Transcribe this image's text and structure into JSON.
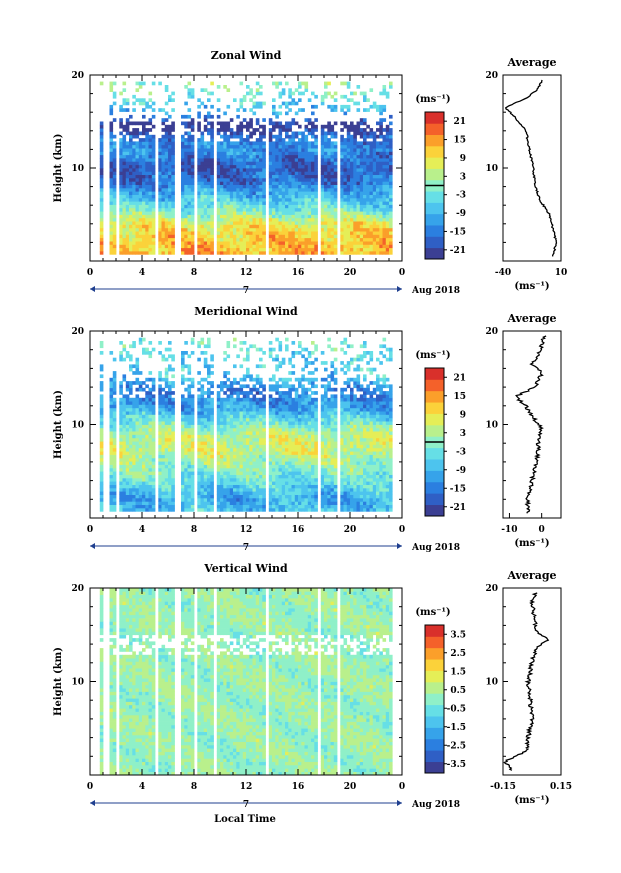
{
  "figure": {
    "xlabel": "Local Time",
    "date_label": "Aug 2018",
    "day_label": "7",
    "ylabel": "Height (km)",
    "unit_label": "(ms⁻¹)",
    "average_title": "Average"
  },
  "chart_data": [
    {
      "type": "heatmap",
      "title": "Zonal Wind",
      "xlabel": "",
      "ylabel": "Height (km)",
      "xlim": [
        0,
        24
      ],
      "ylim": [
        0,
        20
      ],
      "x_ticks": [
        "0",
        "4",
        "8",
        "12",
        "16",
        "20",
        "0"
      ],
      "y_ticks": [
        "10",
        "20"
      ],
      "colorbar": {
        "unit": "(ms⁻¹)",
        "ticks": [
          "21",
          "15",
          "9",
          "3",
          "-3",
          "-9",
          "-15",
          "-21"
        ],
        "range": [
          -24,
          24
        ],
        "zero_line": true
      },
      "profile_key": [
        [
          0.5,
          3
        ],
        [
          2,
          6
        ],
        [
          3,
          4
        ],
        [
          5,
          0
        ],
        [
          6.5,
          -8
        ],
        [
          8,
          -12
        ],
        [
          10,
          -14
        ],
        [
          12.5,
          -18
        ],
        [
          14,
          -20
        ],
        [
          15.5,
          -30
        ],
        [
          16.5,
          -38
        ],
        [
          17.5,
          -20
        ],
        [
          18.5,
          -10
        ],
        [
          19.5,
          -6
        ]
      ],
      "average_profile": {
        "title": "Average",
        "xlabel": "(ms⁻¹)",
        "xlim": [
          -40,
          10
        ],
        "x_ticks": [
          "-40",
          "10"
        ],
        "y_ticks": [
          "10",
          "20"
        ]
      }
    },
    {
      "type": "heatmap",
      "title": "Meridional Wind",
      "xlabel": "",
      "ylabel": "Height (km)",
      "xlim": [
        0,
        24
      ],
      "ylim": [
        0,
        20
      ],
      "x_ticks": [
        "0",
        "4",
        "8",
        "12",
        "16",
        "20",
        "0"
      ],
      "y_ticks": [
        "10",
        "20"
      ],
      "colorbar": {
        "unit": "(ms⁻¹)",
        "ticks": [
          "21",
          "15",
          "9",
          "3",
          "-3",
          "-9",
          "-15",
          "-21"
        ],
        "range": [
          -24,
          24
        ],
        "zero_line": true
      },
      "profile_key": [
        [
          0.5,
          -4
        ],
        [
          2,
          -4.5
        ],
        [
          4,
          -3
        ],
        [
          6,
          -1.5
        ],
        [
          8,
          -1
        ],
        [
          9.5,
          0
        ],
        [
          10.5,
          -2
        ],
        [
          12,
          -5
        ],
        [
          13,
          -8
        ],
        [
          14,
          -2
        ],
        [
          15.5,
          0
        ],
        [
          16.5,
          -3
        ],
        [
          17.5,
          -1
        ],
        [
          18.5,
          0
        ],
        [
          19.5,
          1
        ]
      ],
      "average_profile": {
        "title": "Average",
        "xlabel": "(ms⁻¹)",
        "xlim": [
          -12,
          6
        ],
        "x_ticks": [
          "-10",
          "0"
        ],
        "y_ticks": [
          "10",
          "20"
        ]
      }
    },
    {
      "type": "heatmap",
      "title": "Vertical Wind",
      "xlabel": "Local Time",
      "ylabel": "Height (km)",
      "xlim": [
        0,
        24
      ],
      "ylim": [
        0,
        20
      ],
      "x_ticks": [
        "0",
        "4",
        "8",
        "12",
        "16",
        "20",
        "0"
      ],
      "y_ticks": [
        "10",
        "20"
      ],
      "colorbar": {
        "unit": "(ms⁻¹)",
        "ticks": [
          "3.5",
          "2.5",
          "1.5",
          "0.5",
          "-0.5",
          "-1.5",
          "-2.5",
          "-3.5"
        ],
        "range": [
          -4,
          4
        ],
        "zero_line": false
      },
      "profile_key": [
        [
          0.5,
          -0.1
        ],
        [
          1.5,
          -0.14
        ],
        [
          2.5,
          -0.03
        ],
        [
          4,
          -0.02
        ],
        [
          6,
          0.0
        ],
        [
          8,
          -0.01
        ],
        [
          10,
          -0.02
        ],
        [
          12,
          0.0
        ],
        [
          13.5,
          0.02
        ],
        [
          14.5,
          0.08
        ],
        [
          15.5,
          0.02
        ],
        [
          17,
          0.01
        ],
        [
          18.5,
          0.0
        ],
        [
          19.5,
          0.02
        ]
      ],
      "average_profile": {
        "title": "Average",
        "xlabel": "(ms⁻¹)",
        "xlim": [
          -0.15,
          0.15
        ],
        "x_ticks": [
          "-0.15",
          "0.15"
        ],
        "y_ticks": [
          "10",
          "20"
        ]
      }
    }
  ]
}
